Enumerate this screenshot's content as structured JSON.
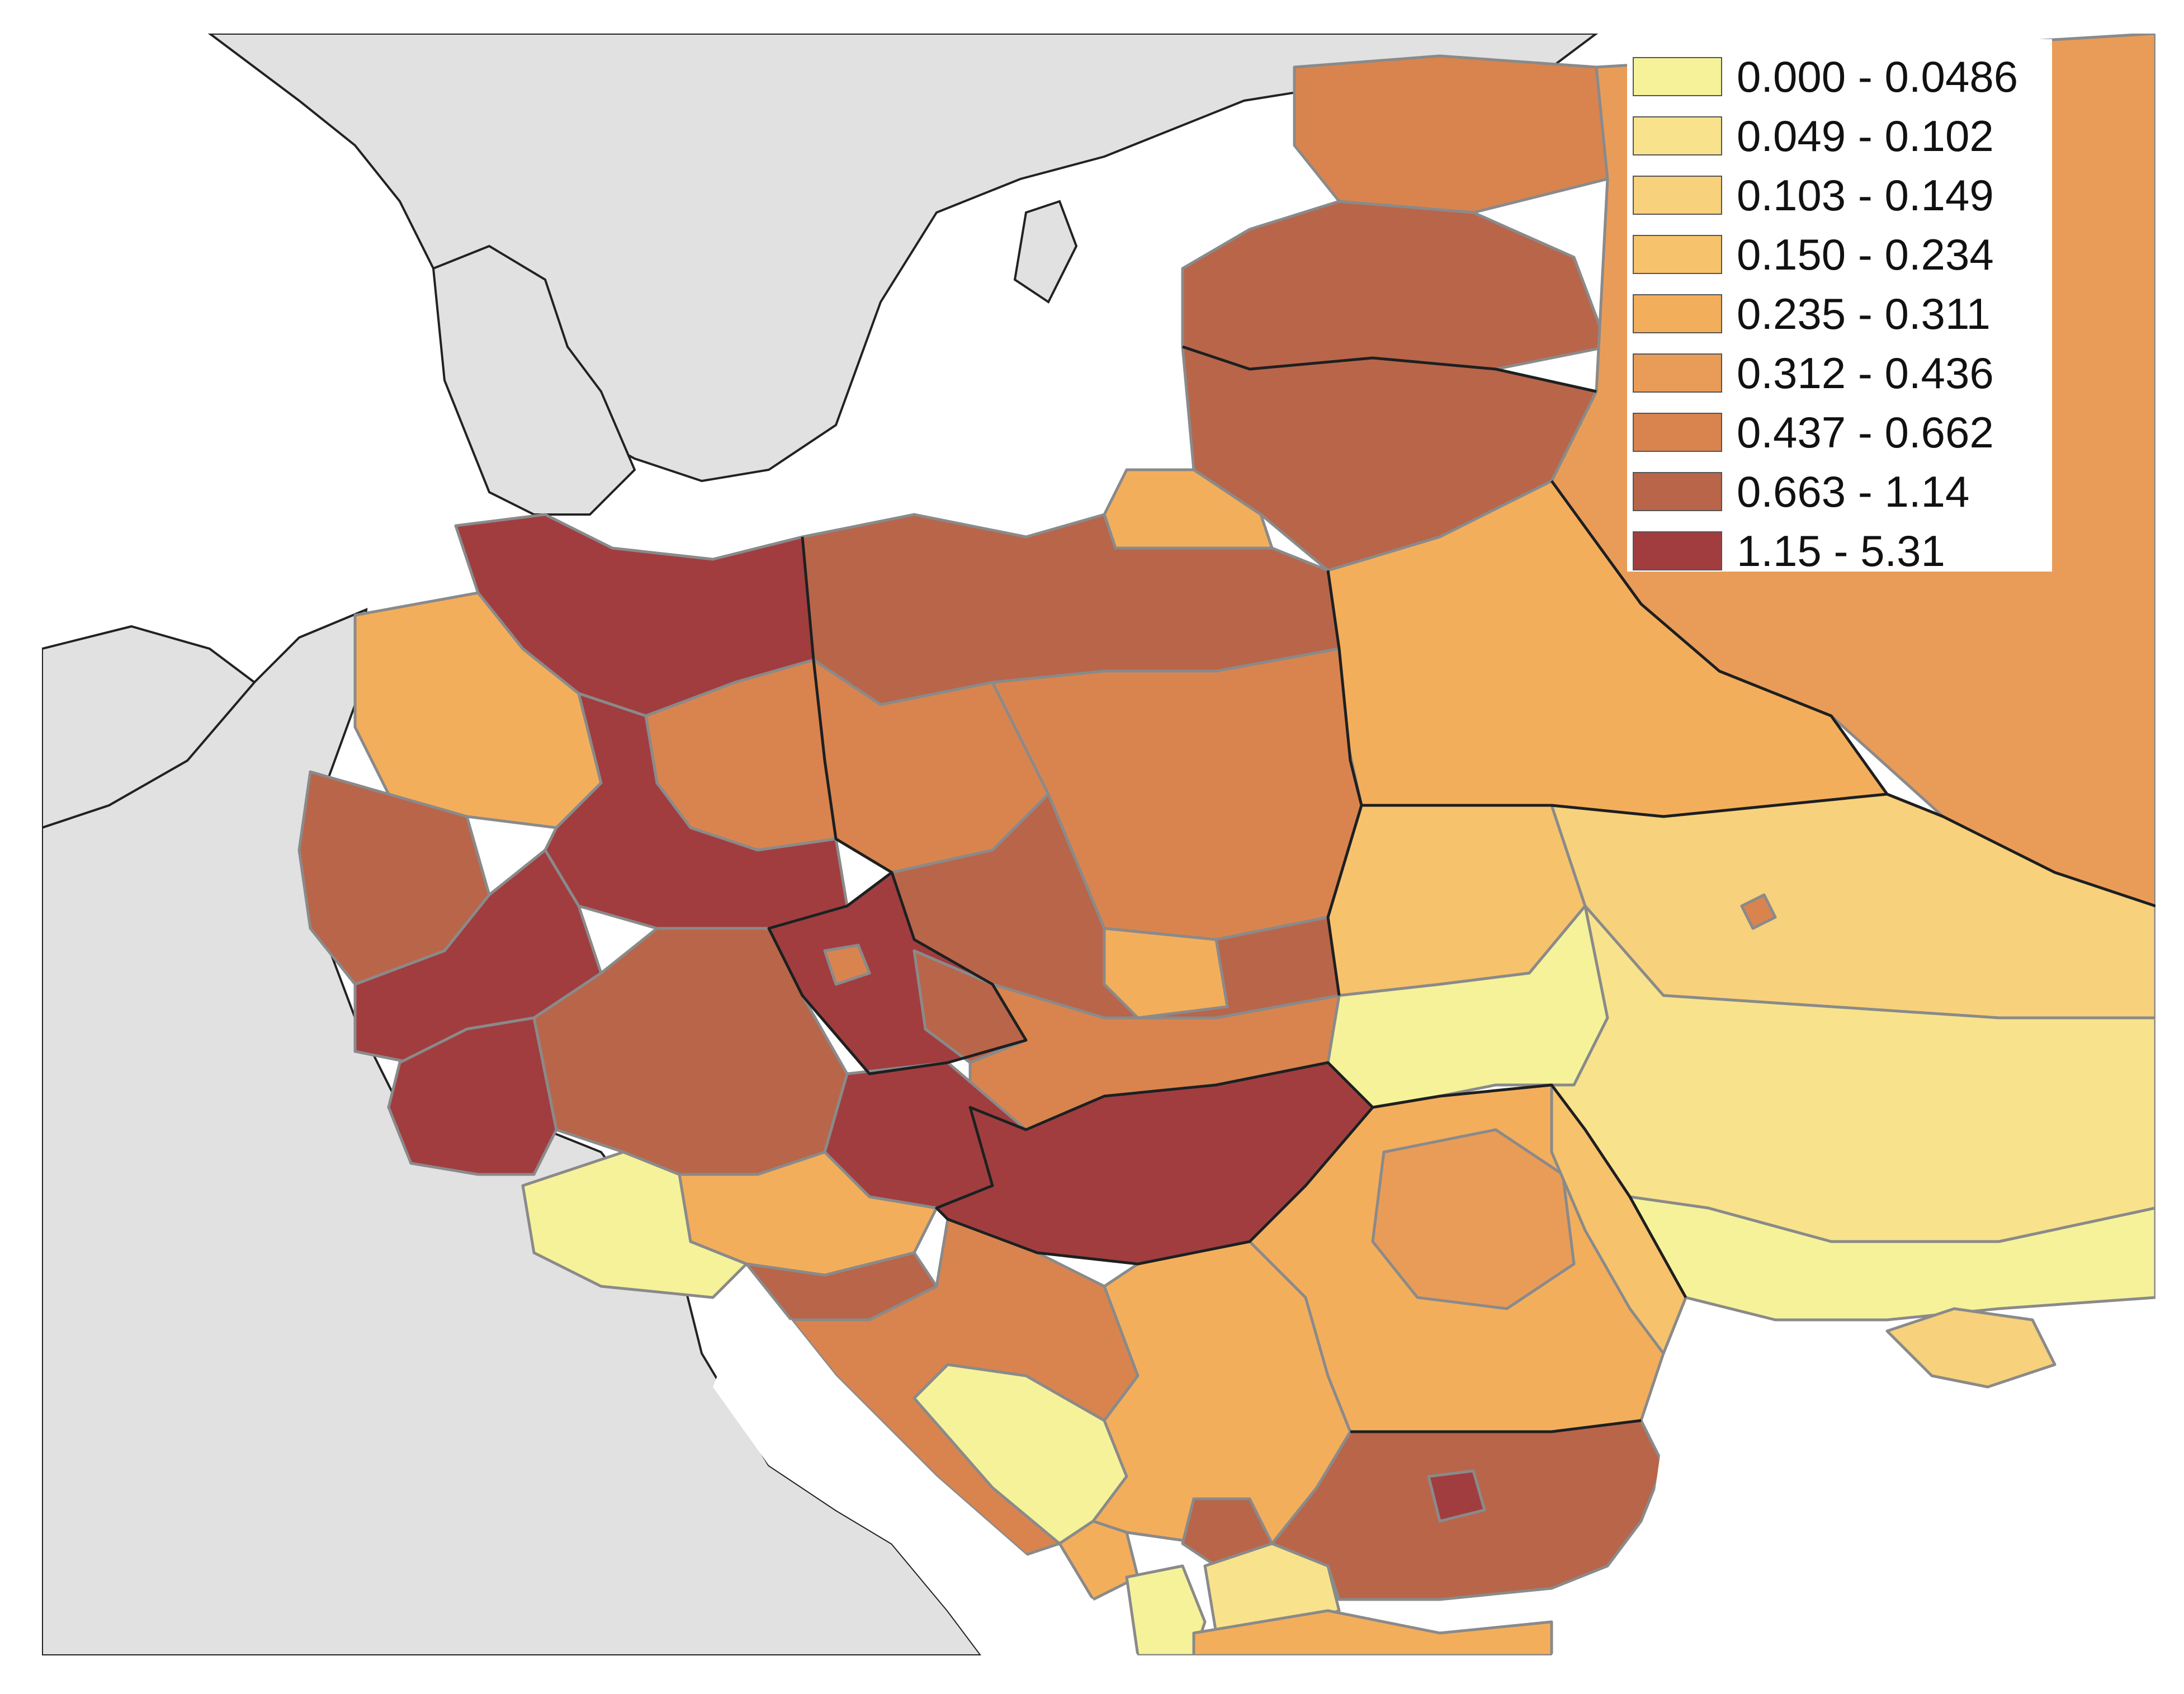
{
  "legend": {
    "classes": [
      {
        "label": "0.000 - 0.0486",
        "color": "#f5f29a"
      },
      {
        "label": "0.049 - 0.102",
        "color": "#f8e38c"
      },
      {
        "label": "0.103 - 0.149",
        "color": "#f7d17b"
      },
      {
        "label": "0.150 - 0.234",
        "color": "#f7c26c"
      },
      {
        "label": "0.235 - 0.311",
        "color": "#f3ae5c"
      },
      {
        "label": "0.312 - 0.436",
        "color": "#e99c58"
      },
      {
        "label": "0.437 - 0.662",
        "color": "#d9844e"
      },
      {
        "label": "0.663 - 1.14",
        "color": "#b96549"
      },
      {
        "label": "1.15 - 5.31",
        "color": "#a13d3f"
      }
    ]
  },
  "colors": {
    "land_outside_study_area": "#e1e1e1",
    "sea": "#ffffff",
    "region_border": "#8a8a8a",
    "country_border": "#1f1f1f"
  }
}
